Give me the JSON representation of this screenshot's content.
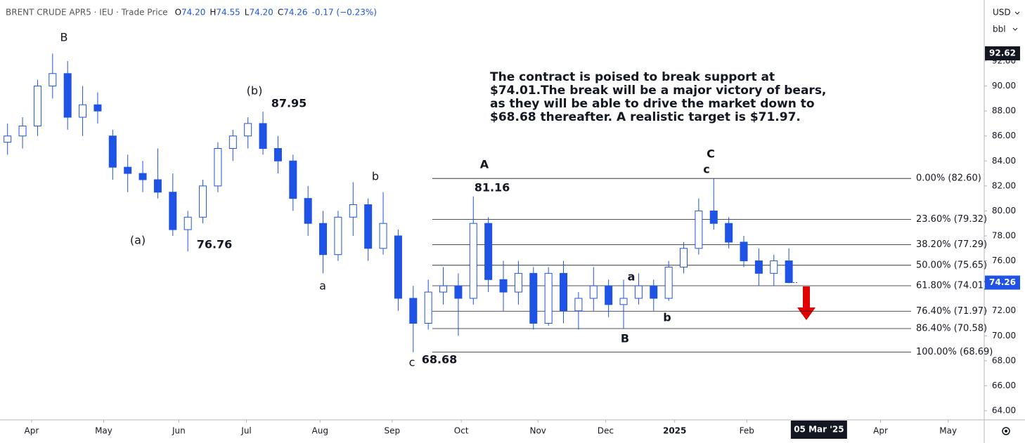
{
  "header": {
    "symbol": "BRENT CRUDE APR5 · IEU · Trade Price",
    "ohlc": [
      {
        "label": "O",
        "value": "74.20"
      },
      {
        "label": "H",
        "value": "74.55"
      },
      {
        "label": "L",
        "value": "74.20"
      },
      {
        "label": "C",
        "value": "74.26"
      }
    ],
    "change": "-0.17 (−0.23%)",
    "currency": "USD",
    "unit": "bbl"
  },
  "chart_data": {
    "type": "candlestick",
    "color": "#1e53e5",
    "open": [
      85.5,
      86,
      86.8,
      90,
      91,
      87.5,
      88.5,
      86,
      83.5,
      83,
      82.5,
      81.5,
      78.5,
      79.5,
      82,
      85,
      86,
      87,
      85,
      84,
      81,
      79,
      76.5,
      79.5,
      80.5,
      77,
      78,
      73,
      71,
      73.5,
      74,
      73,
      79,
      74.5,
      73.5,
      75,
      71,
      75,
      72,
      73,
      74,
      72.5,
      73,
      74,
      73,
      75.5,
      77,
      80,
      79,
      77.5,
      76,
      75,
      76
    ],
    "high": [
      87,
      87.5,
      90.5,
      92.6,
      92,
      90,
      89.5,
      86.5,
      84.5,
      84,
      85,
      83,
      80,
      82.5,
      85.5,
      86.5,
      87.5,
      87.95,
      86,
      84.5,
      82,
      80,
      80,
      82.3,
      81,
      81.5,
      78.5,
      74,
      74.5,
      75.5,
      75,
      81.16,
      79.5,
      76,
      76,
      75.5,
      75.5,
      76,
      73.5,
      75.5,
      74.5,
      74.5,
      75,
      74.5,
      76,
      77.5,
      81,
      82.6,
      79.5,
      78,
      77,
      76.5,
      77
    ],
    "low": [
      84.5,
      85,
      86,
      89,
      86.5,
      86,
      87,
      82.5,
      81.5,
      81.5,
      81,
      78,
      76.76,
      79,
      81.5,
      84,
      85,
      84.5,
      83,
      80,
      78,
      75,
      76,
      78,
      76,
      76.5,
      72,
      68.68,
      70.5,
      72.5,
      70,
      72.5,
      73.5,
      72,
      72.5,
      70.5,
      70.8,
      71,
      70.5,
      72,
      71.5,
      70.6,
      72.5,
      72,
      72.8,
      75,
      76.5,
      78.5,
      77,
      75.5,
      74,
      74,
      74.2
    ],
    "close": [
      86,
      86.8,
      90,
      91,
      87.5,
      88.5,
      88,
      83.5,
      83,
      82.5,
      81.5,
      78.5,
      79.5,
      82,
      85,
      86,
      87,
      85,
      84,
      81,
      79,
      76.5,
      79.5,
      80.5,
      77,
      79,
      73,
      71,
      73.5,
      74,
      73,
      79,
      74.5,
      73.5,
      75,
      71,
      75,
      72,
      73,
      74,
      72.5,
      73,
      74,
      73,
      75.5,
      77,
      80,
      79,
      77.5,
      76,
      75,
      76,
      74.26
    ],
    "xlim": [
      -0.5,
      65.0
    ],
    "xticks": [
      {
        "value": 1.6,
        "label": "Apr"
      },
      {
        "value": 6.4,
        "label": "May"
      },
      {
        "value": 11.4,
        "label": "Jun"
      },
      {
        "value": 15.9,
        "label": "Jul"
      },
      {
        "value": 20.8,
        "label": "Aug"
      },
      {
        "value": 25.6,
        "label": "Sep"
      },
      {
        "value": 30.2,
        "label": "Oct"
      },
      {
        "value": 35.3,
        "label": "Nov"
      },
      {
        "value": 39.8,
        "label": "Dec"
      },
      {
        "value": 44.4,
        "label": "2025"
      },
      {
        "value": 49.2,
        "label": "Feb"
      },
      {
        "value": 58.1,
        "label": "Apr"
      },
      {
        "value": 62.6,
        "label": "May"
      }
    ],
    "cursor_x": {
      "value": 54.0,
      "label": "05 Mar '25"
    },
    "ylim": [
      63.27,
      96.89
    ],
    "yticks": [
      {
        "value": 64,
        "label": "64.00"
      },
      {
        "value": 66,
        "label": "66.00"
      },
      {
        "value": 68,
        "label": "68.00"
      },
      {
        "value": 70,
        "label": "70.00"
      },
      {
        "value": 72,
        "label": "72.00"
      },
      {
        "value": 74,
        "label": "74.00"
      },
      {
        "value": 76,
        "label": "76.00"
      },
      {
        "value": 78,
        "label": "78.00"
      },
      {
        "value": 80,
        "label": "80.00"
      },
      {
        "value": 82,
        "label": "82.00"
      },
      {
        "value": 84,
        "label": "84.00"
      },
      {
        "value": 86,
        "label": "86.00"
      },
      {
        "value": 88,
        "label": "88.00"
      },
      {
        "value": 90,
        "label": "90.00"
      },
      {
        "value": 92,
        "label": "92.00"
      }
    ],
    "high_marker": 92.62,
    "last_price": 74.26,
    "fib": [
      {
        "value": 82.6,
        "label": "0.00% (82.60)"
      },
      {
        "value": 79.32,
        "label": "23.60% (79.32)"
      },
      {
        "value": 77.29,
        "label": "38.20% (77.29)"
      },
      {
        "value": 75.65,
        "label": "50.00% (75.65)"
      },
      {
        "value": 74.01,
        "label": "61.80% (74.01)"
      },
      {
        "value": 71.97,
        "label": "76.40% (71.97)"
      },
      {
        "value": 70.58,
        "label": "86.40% (70.58)"
      },
      {
        "value": 68.69,
        "label": "100.00% (68.69)"
      }
    ],
    "annotations": [
      "B",
      "(b)",
      "87.95",
      "(a)",
      "76.76",
      "a",
      "b",
      "c",
      "68.68",
      "A",
      "81.16",
      "C",
      "c",
      "a",
      "b",
      "B"
    ],
    "note": [
      "The contract is poised to break support at",
      "$74.01.The break will be a major victory of bears,",
      "as they will be able to drive the market down to",
      "$68.68 thereafter. A realistic target is $71.97."
    ]
  }
}
